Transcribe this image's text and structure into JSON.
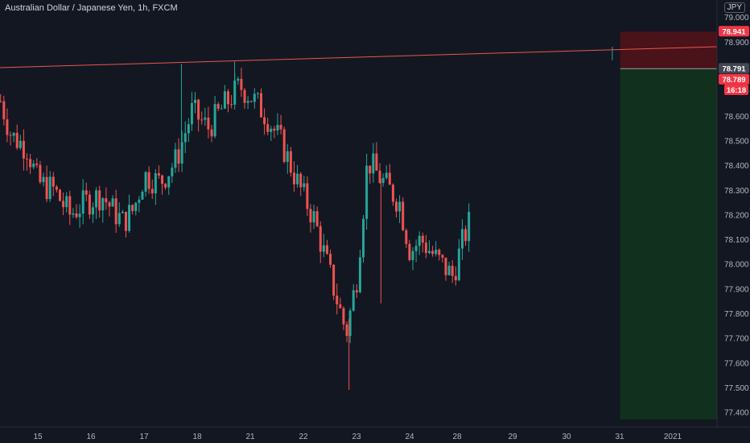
{
  "header": {
    "title": "Australian Dollar / Japanese Yen, 1h, FXCM",
    "currency": "JPY"
  },
  "colors": {
    "background": "#131722",
    "up": "#26a69a",
    "down": "#ef5350",
    "stop_zone": "#4a1219",
    "target_zone": "#12301e",
    "trendline": "#e8574d",
    "axis_text": "#b2b5be"
  },
  "chart_data": {
    "type": "candlestick",
    "ylim": [
      77.34,
      79.03
    ],
    "y_ticks": [
      "79.000",
      "78.900",
      "78.800",
      "78.700",
      "78.600",
      "78.500",
      "78.400",
      "78.300",
      "78.200",
      "78.100",
      "78.000",
      "77.900",
      "77.800",
      "77.700",
      "77.600",
      "77.500",
      "77.400"
    ],
    "x_ticks": [
      {
        "label": "15",
        "day": 15
      },
      {
        "label": "16",
        "day": 16
      },
      {
        "label": "17",
        "day": 17
      },
      {
        "label": "18",
        "day": 18
      },
      {
        "label": "21",
        "day": 21
      },
      {
        "label": "22",
        "day": 22
      },
      {
        "label": "23",
        "day": 23
      },
      {
        "label": "24",
        "day": 24
      },
      {
        "label": "28",
        "day": 28
      },
      {
        "label": "29",
        "day": 29
      },
      {
        "label": "30",
        "day": 30
      },
      {
        "label": "31",
        "day": 31
      },
      {
        "label": "2021",
        "day": 32
      }
    ],
    "price_path": [
      [
        14.3,
        78.66
      ],
      [
        14.5,
        78.52
      ],
      [
        14.8,
        78.47
      ],
      [
        15.0,
        78.33
      ],
      [
        15.3,
        78.3
      ],
      [
        15.6,
        78.2
      ],
      [
        15.9,
        78.25
      ],
      [
        16.2,
        78.28
      ],
      [
        16.4,
        78.22
      ],
      [
        16.6,
        78.17
      ],
      [
        16.8,
        78.22
      ],
      [
        17.0,
        78.36
      ],
      [
        17.3,
        78.33
      ],
      [
        17.6,
        78.42
      ],
      [
        17.9,
        78.62
      ],
      [
        18.2,
        78.55
      ],
      [
        18.5,
        78.64
      ],
      [
        18.8,
        78.72
      ],
      [
        19.0,
        78.68
      ],
      [
        19.3,
        78.6
      ],
      [
        19.6,
        78.48
      ],
      [
        19.9,
        78.32
      ],
      [
        20.2,
        78.18
      ],
      [
        20.5,
        77.95
      ],
      [
        20.8,
        77.72
      ],
      [
        21.0,
        77.95
      ],
      [
        21.2,
        78.42
      ],
      [
        21.5,
        78.33
      ],
      [
        21.8,
        78.25
      ],
      [
        22.0,
        78.05
      ],
      [
        22.2,
        78.1
      ],
      [
        22.5,
        78.02
      ],
      [
        22.8,
        77.95
      ],
      [
        23.0,
        78.1
      ],
      [
        23.3,
        78.28
      ],
      [
        23.6,
        78.38
      ],
      [
        23.9,
        78.5
      ],
      [
        24.2,
        78.58
      ],
      [
        24.5,
        78.62
      ],
      [
        24.8,
        78.72
      ],
      [
        25.1,
        78.8
      ],
      [
        25.4,
        78.78
      ],
      [
        25.7,
        78.85
      ],
      [
        25.9,
        78.8
      ]
    ],
    "spikes": [
      {
        "day": 17.7,
        "high": 78.81
      },
      {
        "day": 18.7,
        "high": 78.82
      },
      {
        "day": 20.85,
        "low": 77.49
      },
      {
        "day": 21.45,
        "low": 77.84
      },
      {
        "day": 25.8,
        "high": 78.88
      }
    ],
    "trendline": {
      "from": [
        13.9,
        78.795
      ],
      "to": [
        32.5,
        78.88
      ]
    },
    "position": {
      "start_day": 25.95,
      "end_day": 32.3,
      "stop_level": 78.941,
      "entry_level": 78.791,
      "target_level": 77.37
    },
    "price_labels": [
      {
        "text": "78.941",
        "value": 78.941,
        "kind": "stop"
      },
      {
        "text": "78.791",
        "value": 78.791,
        "kind": "entry"
      },
      {
        "text": "78.789",
        "value": 78.789,
        "kind": "last"
      },
      {
        "text": "16:18",
        "value": 78.789,
        "kind": "countdown"
      }
    ]
  }
}
